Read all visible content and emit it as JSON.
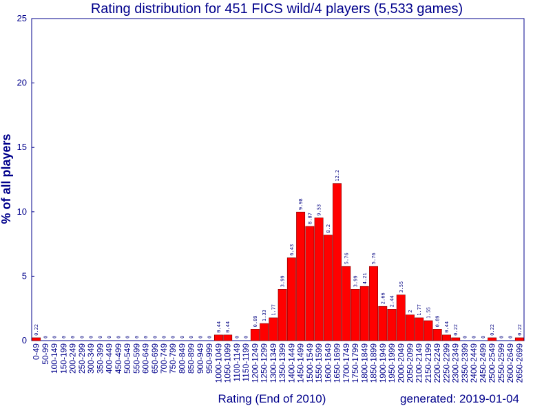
{
  "chart_data": {
    "type": "bar",
    "title": "Rating distribution for 451 FICS wild/4 players (5,533 games)",
    "xlabel": "Rating (End of 2010)",
    "ylabel": "% of all players",
    "generated": "generated: 2019-01-04",
    "ylim": [
      0,
      25
    ],
    "yticks": [
      "0",
      "5",
      "10",
      "15",
      "20",
      "25"
    ],
    "grid": false,
    "bar_color": "#ff0000",
    "text_color": "#00008b",
    "categories": [
      "0-49",
      "50-99",
      "100-149",
      "150-199",
      "200-249",
      "250-299",
      "300-349",
      "350-399",
      "400-449",
      "450-499",
      "500-549",
      "550-599",
      "600-649",
      "650-699",
      "700-749",
      "750-799",
      "800-849",
      "850-899",
      "900-949",
      "950-999",
      "1000-1049",
      "1050-1099",
      "1100-1149",
      "1150-1199",
      "1200-1249",
      "1250-1299",
      "1300-1349",
      "1350-1399",
      "1400-1449",
      "1450-1499",
      "1500-1549",
      "1550-1599",
      "1600-1649",
      "1650-1699",
      "1700-1749",
      "1750-1799",
      "1800-1849",
      "1850-1899",
      "1900-1949",
      "1950-1999",
      "2000-2049",
      "2050-2099",
      "2100-2149",
      "2150-2199",
      "2200-2249",
      "2250-2299",
      "2300-2349",
      "2350-2399",
      "2400-2449",
      "2450-2499",
      "2500-2549",
      "2550-2599",
      "2600-2649",
      "2650-2699"
    ],
    "values": [
      0.22,
      0,
      0,
      0,
      0,
      0,
      0,
      0,
      0,
      0,
      0,
      0,
      0,
      0,
      0,
      0,
      0,
      0,
      0,
      0,
      0.44,
      0.44,
      0,
      0,
      0.89,
      1.33,
      1.77,
      3.99,
      6.43,
      9.98,
      8.87,
      9.53,
      8.2,
      12.2,
      5.76,
      3.99,
      4.21,
      5.76,
      2.66,
      2.44,
      3.55,
      2,
      1.77,
      1.55,
      0.89,
      0.44,
      0.22,
      0,
      0,
      0,
      0.22,
      0,
      0,
      0.22
    ],
    "labels": [
      "0.22",
      "0",
      "0",
      "0",
      "0",
      "0",
      "0",
      "0",
      "0",
      "0",
      "0",
      "0",
      "0",
      "0",
      "0",
      "0",
      "0",
      "0",
      "0",
      "0",
      "0.44",
      "0.44",
      "0",
      "0",
      "0.89",
      "1.33",
      "1.77",
      "3.99",
      "6.43",
      "9.98",
      "8.87",
      "9.53",
      "8.2",
      "12.2",
      "5.76",
      "3.99",
      "4.21",
      "5.76",
      "2.66",
      "2.44",
      "3.55",
      "2",
      "1.77",
      "1.55",
      "0.89",
      "0.44",
      "0.22",
      "0",
      "0",
      "0",
      "0.22",
      "0",
      "0",
      "0.22"
    ]
  }
}
